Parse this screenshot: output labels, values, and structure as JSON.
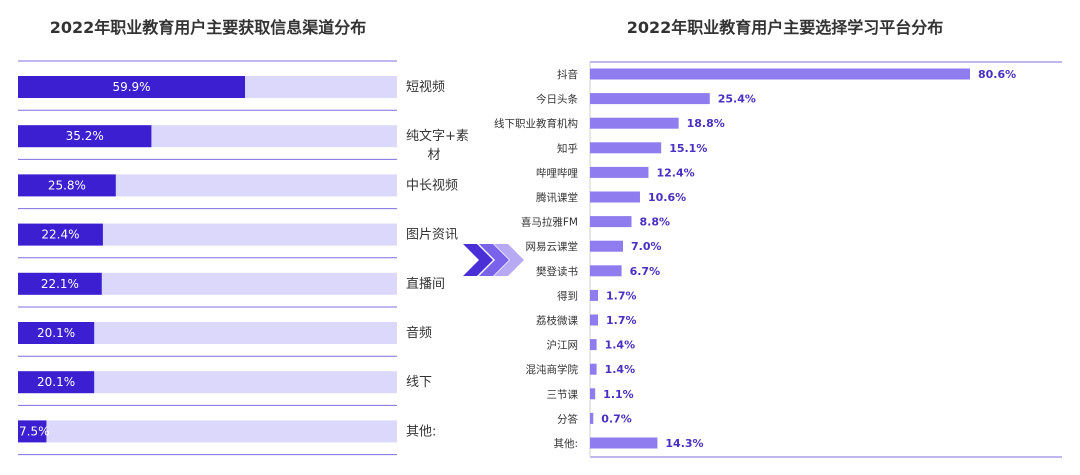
{
  "left_title": "2022年职业教育用户主要获取信息渠道分布",
  "right_title": "2022年职业教育用户主要选择学习平台分布",
  "colors": {
    "left_bar": "#3b1fd0",
    "left_track": "#dcd8fb",
    "right_bar": "#8f7cef",
    "rule": "#7e6fe0",
    "arrow_dark": "#4a2fd6",
    "arrow_light": "#b7aaf2",
    "value_text": "#4b2fc0"
  },
  "chart_data": [
    {
      "type": "bar",
      "orientation": "horizontal",
      "title": "2022年职业教育用户主要获取信息渠道分布",
      "categories": [
        "短视频",
        "纯文字+素材",
        "中长视频",
        "图片资讯",
        "直播间",
        "音频",
        "线下",
        "其他:"
      ],
      "values": [
        59.9,
        35.2,
        25.8,
        22.4,
        22.1,
        20.1,
        20.1,
        7.5
      ],
      "value_labels": [
        "59.9%",
        "35.2%",
        "25.8%",
        "22.4%",
        "22.1%",
        "20.1%",
        "20.1%",
        "7.5%"
      ],
      "xlim": [
        0,
        100
      ],
      "unit": "%"
    },
    {
      "type": "bar",
      "orientation": "horizontal",
      "title": "2022年职业教育用户主要选择学习平台分布",
      "categories": [
        "抖音",
        "今日头条",
        "线下职业教育机构",
        "知乎",
        "哔哩哔哩",
        "腾讯课堂",
        "喜马拉雅FM",
        "网易云课堂",
        "樊登读书",
        "得到",
        "荔枝微课",
        "沪江网",
        "混沌商学院",
        "三节课",
        "分答",
        "其他:"
      ],
      "values": [
        80.6,
        25.4,
        18.8,
        15.1,
        12.4,
        10.6,
        8.8,
        7.0,
        6.7,
        1.7,
        1.7,
        1.4,
        1.4,
        1.1,
        0.7,
        14.3
      ],
      "value_labels": [
        "80.6%",
        "25.4%",
        "18.8%",
        "15.1%",
        "12.4%",
        "10.6%",
        "8.8%",
        "7.0%",
        "6.7%",
        "1.7%",
        "1.7%",
        "1.4%",
        "1.4%",
        "1.1%",
        "0.7%",
        "14.3%"
      ],
      "unit": "%"
    }
  ]
}
